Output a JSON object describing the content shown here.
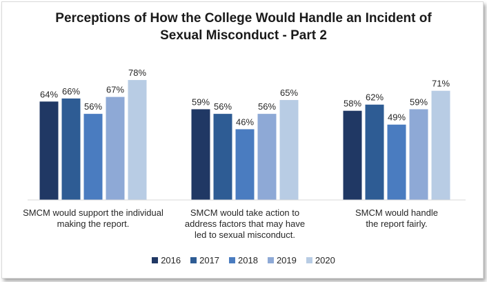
{
  "chart_data": {
    "type": "bar",
    "title_lines": [
      "Perceptions of How the College Would Handle an Incident of",
      "Sexual Misconduct - Part 2"
    ],
    "categories": [
      [
        "SMCM would support the individual",
        "making the report."
      ],
      [
        "SMCM would take action to",
        "address factors that may have",
        "led to sexual misconduct."
      ],
      [
        "SMCM would handle",
        "the report fairly."
      ]
    ],
    "series": [
      {
        "name": "2016",
        "color": "#203864",
        "values": [
          64,
          59,
          58
        ],
        "labels": [
          "64%",
          "59%",
          "58%"
        ]
      },
      {
        "name": "2017",
        "color": "#2e5c94",
        "values": [
          66,
          56,
          62
        ],
        "labels": [
          "66%",
          "56%",
          "62%"
        ]
      },
      {
        "name": "2018",
        "color": "#4a7cc0",
        "values": [
          56,
          46,
          49
        ],
        "labels": [
          "56%",
          "46%",
          "49%"
        ]
      },
      {
        "name": "2019",
        "color": "#8ea9d6",
        "values": [
          67,
          56,
          59
        ],
        "labels": [
          "67%",
          "56%",
          "59%"
        ]
      },
      {
        "name": "2020",
        "color": "#b8cce4",
        "values": [
          78,
          65,
          71
        ],
        "labels": [
          "78%",
          "65%",
          "71%"
        ]
      }
    ],
    "ylim": [
      0,
      100
    ],
    "grid": false,
    "legend_position": "bottom"
  }
}
